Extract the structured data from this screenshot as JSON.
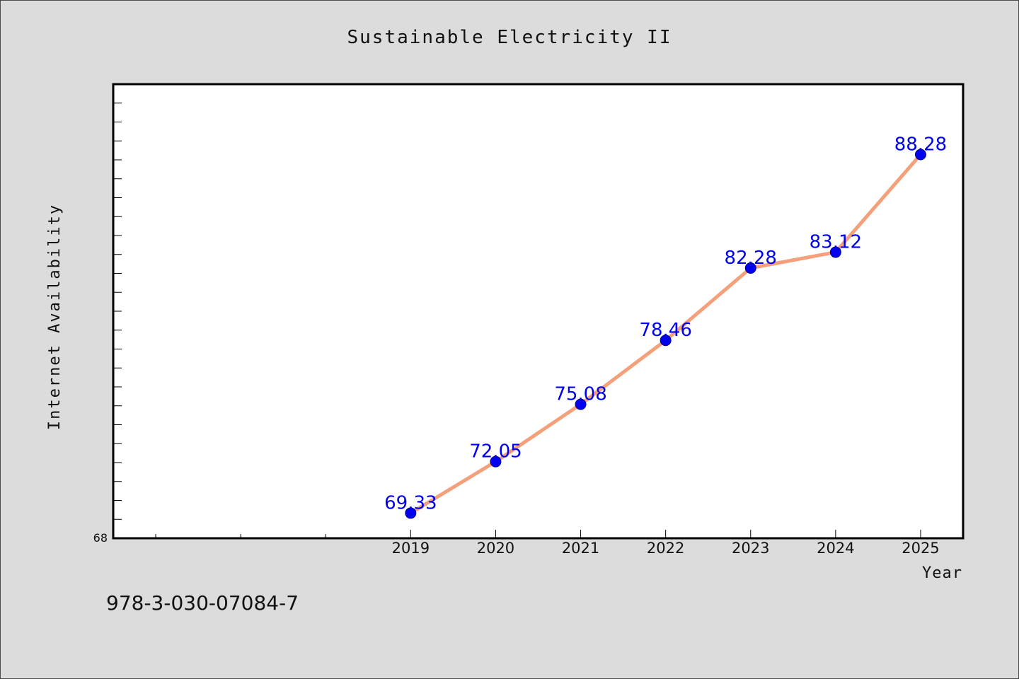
{
  "chart_data": {
    "type": "line",
    "title": "Sustainable Electricity II",
    "xlabel": "Year",
    "ylabel": "Internet Availability",
    "categories": [
      "2019",
      "2020",
      "2021",
      "2022",
      "2023",
      "2024",
      "2025"
    ],
    "x": [
      2019,
      2020,
      2021,
      2022,
      2023,
      2024,
      2025
    ],
    "series": [
      {
        "values": [
          69.33,
          72.05,
          75.08,
          78.46,
          82.28,
          83.12,
          88.28
        ],
        "labels": [
          "69.33",
          "72.05",
          "75.08",
          "78.46",
          "82.28",
          "83.12",
          "88.28"
        ]
      }
    ],
    "xlim": [
      2015.5,
      2025.5
    ],
    "ylim": [
      68,
      92
    ],
    "y_tick_labels": [
      "68"
    ],
    "grid": false,
    "legend": "none",
    "colors": {
      "line": "#f4a07a",
      "marker": "#0000ee",
      "data_label": "#0000ee",
      "plot_background": "#ffffff",
      "page_background": "#dcdcdc"
    }
  },
  "footer": {
    "isbn": "978-3-030-07084-7"
  }
}
